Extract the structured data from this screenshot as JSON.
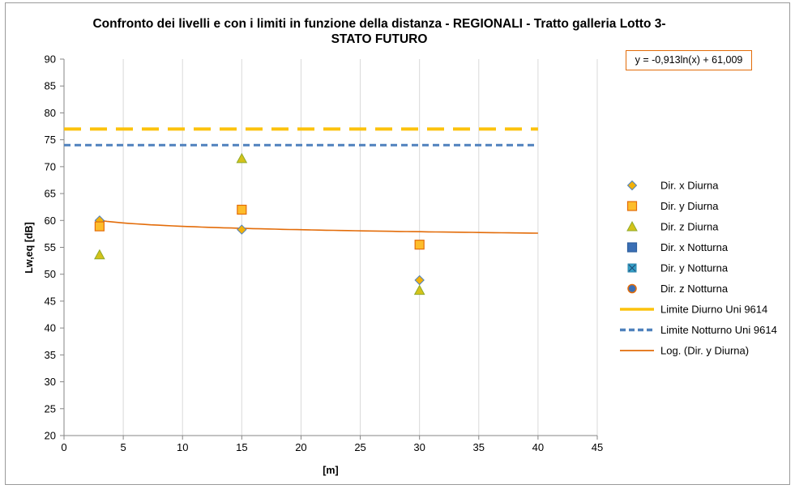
{
  "chart_data": {
    "type": "scatter",
    "title": "Confronto dei livelli e con i limiti in funzione della distanza - REGIONALI - Tratto galleria Lotto 3-",
    "title_line2": "STATO FUTURO",
    "xlabel": "[m]",
    "ylabel": "Lw,eq [dB]",
    "xlim": [
      0,
      45
    ],
    "ylim": [
      20,
      90
    ],
    "x_ticks": [
      0,
      5,
      10,
      15,
      20,
      25,
      30,
      35,
      40,
      45
    ],
    "y_ticks": [
      20,
      25,
      30,
      35,
      40,
      45,
      50,
      55,
      60,
      65,
      70,
      75,
      80,
      85,
      90
    ],
    "grid": "vertical",
    "legend_position": "right",
    "trendline_equation": "y = -0,913ln(x) + 61,009",
    "series": [
      {
        "name": "Dir. x Diurna",
        "marker": "diamond",
        "color": "#4f81bd",
        "fill": "#f2b10a",
        "x": [
          3,
          15,
          30
        ],
        "y": [
          60.0,
          58.3,
          48.9
        ]
      },
      {
        "name": "Dir. y Diurna",
        "marker": "square",
        "color": "#e36c09",
        "fill": "#fdbd2b",
        "x": [
          3,
          15,
          30
        ],
        "y": [
          58.9,
          62.0,
          55.5
        ]
      },
      {
        "name": "Dir. z Diurna",
        "marker": "triangle",
        "color": "#8faa2a",
        "fill": "#d4c21a",
        "x": [
          3,
          15,
          30
        ],
        "y": [
          53.6,
          71.5,
          47.0
        ]
      },
      {
        "name": "Dir. x Notturna",
        "marker": "square",
        "color": "#2e5f9e",
        "fill": "#3a6fb5",
        "x": [],
        "y": []
      },
      {
        "name": "Dir. y Notturna",
        "marker": "x-square",
        "color": "#2e86ab",
        "fill": "#34a0c8",
        "x": [],
        "y": []
      },
      {
        "name": "Dir. z Notturna",
        "marker": "circle",
        "color": "#e36c09",
        "fill": "#3a6fb5",
        "x": [],
        "y": []
      },
      {
        "name": "Limite Diurno Uni 9614",
        "marker": "line",
        "style": "dashed",
        "color": "#fcc20c",
        "x": [
          0,
          40
        ],
        "y": [
          77,
          77
        ]
      },
      {
        "name": "Limite Notturno Uni 9614",
        "marker": "line",
        "style": "dashed",
        "color": "#4f81bd",
        "x": [
          0,
          40
        ],
        "y": [
          74,
          74
        ]
      },
      {
        "name": "Log. (Dir. y Diurna)",
        "marker": "line",
        "style": "solid",
        "color": "#e36c09",
        "trend": {
          "a": -0.913,
          "b": 61.009,
          "x_from": 3,
          "x_to": 40
        }
      }
    ]
  }
}
